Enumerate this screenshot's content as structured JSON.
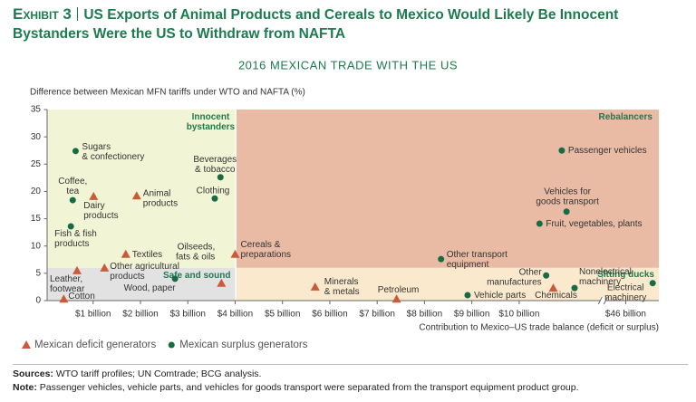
{
  "header": {
    "exhibit": "Exhibit 3",
    "title": "US Exports of Animal Products and Cereals to Mexico Would Likely Be Innocent Bystanders Were the US to Withdraw from NAFTA"
  },
  "chart_data": {
    "type": "scatter",
    "title": "2016 MEXICAN TRADE WITH THE US",
    "y_label": "Difference between Mexican MFN tariffs under WTO and NAFTA (%)",
    "x_label": "Contribution to Mexico–US trade balance (deficit or surplus)",
    "xlim": [
      0,
      46.7
    ],
    "x_break": [
      11.75,
      45.5
    ],
    "ylim": [
      0,
      35
    ],
    "yticks": [
      0,
      5,
      10,
      15,
      20,
      25,
      30,
      35
    ],
    "xticks": [
      {
        "value": 1,
        "label": "$1 billion"
      },
      {
        "value": 2,
        "label": "$2 billion"
      },
      {
        "value": 3,
        "label": "$3 billion"
      },
      {
        "value": 4,
        "label": "$4 billion"
      },
      {
        "value": 5,
        "label": "$5 billion"
      },
      {
        "value": 6,
        "label": "$6 billion"
      },
      {
        "value": 7,
        "label": "$7 billion"
      },
      {
        "value": 8,
        "label": "$8 billion"
      },
      {
        "value": 9,
        "label": "$9 billion"
      },
      {
        "value": 10,
        "label": "$10 billion"
      },
      {
        "value": 46,
        "label": "$46 billion"
      }
    ],
    "regions": [
      {
        "label": [
          "Innocent",
          "bystanders"
        ],
        "x": [
          0,
          4
        ],
        "y": [
          6,
          35
        ],
        "color": "#f2f5d5"
      },
      {
        "label": [
          "Rebalancers"
        ],
        "x": [
          4,
          46.7
        ],
        "y": [
          6,
          35
        ],
        "color": "#e9bba5"
      },
      {
        "label": [
          "Safe and sound"
        ],
        "x": [
          0,
          4
        ],
        "y": [
          0,
          6
        ],
        "color": "#e2e2e2"
      },
      {
        "label": [
          "Sitting ducks"
        ],
        "x": [
          4,
          46.7
        ],
        "y": [
          0,
          6
        ],
        "color": "#fbe9cd"
      }
    ],
    "series": [
      {
        "name": "Mexican deficit generators",
        "color": "#c95b3a",
        "marker": "triangle",
        "x": [
          1.01,
          1.92,
          1.69,
          1.24,
          0.66,
          0.38,
          3.71,
          4.0,
          5.69,
          7.41,
          10.72
        ],
        "values": [
          19.1,
          19.2,
          8.5,
          6.0,
          5.5,
          0.3,
          3.2,
          8.5,
          2.5,
          0.3,
          2.3
        ],
        "labels": [
          [
            "Dairy",
            "products"
          ],
          [
            "Animal",
            "products"
          ],
          [
            "Textiles"
          ],
          [
            "Other agricultural",
            "products"
          ],
          [
            "Leather,",
            "footwear"
          ],
          [
            "Cotton"
          ],
          [
            "Oilseeds,",
            "fats & oils"
          ],
          [
            "Cereals &",
            "preparations"
          ],
          [
            "Minerals",
            "& metals"
          ],
          [
            "Petroleum"
          ],
          [
            "Chemicals"
          ]
        ]
      },
      {
        "name": "Mexican surplus generators",
        "color": "#176c45",
        "marker": "circle",
        "x": [
          0.63,
          0.57,
          0.53,
          3.69,
          3.57,
          2.73,
          8.35,
          8.91,
          10.9,
          11.0,
          10.43,
          10.57,
          11.17,
          46.57
        ],
        "values": [
          27.4,
          18.4,
          13.6,
          22.6,
          18.7,
          4.0,
          7.6,
          1.0,
          27.5,
          16.3,
          14.1,
          4.6,
          2.3,
          3.2
        ],
        "labels": [
          [
            "Sugars",
            "& confectionery"
          ],
          [
            "Coffee,",
            "tea"
          ],
          [
            "Fish & fish",
            "products"
          ],
          [
            "Beverages",
            "& tobacco"
          ],
          [
            "Clothing"
          ],
          [
            "Wood, paper"
          ],
          [
            "Other transport",
            "equipment"
          ],
          [
            "Vehicle parts"
          ],
          [
            "Passenger vehicles"
          ],
          [
            "Vehicles for",
            "goods transport"
          ],
          [
            "Fruit, vegetables, plants"
          ],
          [
            "Other",
            "manufactures"
          ],
          [
            "Nonelectrical",
            "machinery"
          ],
          [
            "Electrical",
            "machinery"
          ]
        ]
      }
    ]
  },
  "footer": {
    "sources": {
      "label": "Sources:",
      "text": "WTO tariff profiles; UN Comtrade; BCG analysis."
    },
    "note": {
      "label": "Note:",
      "text": "Passenger vehicles, vehicle parts, and vehicles for goods transport were separated from the transport equipment product group."
    }
  }
}
